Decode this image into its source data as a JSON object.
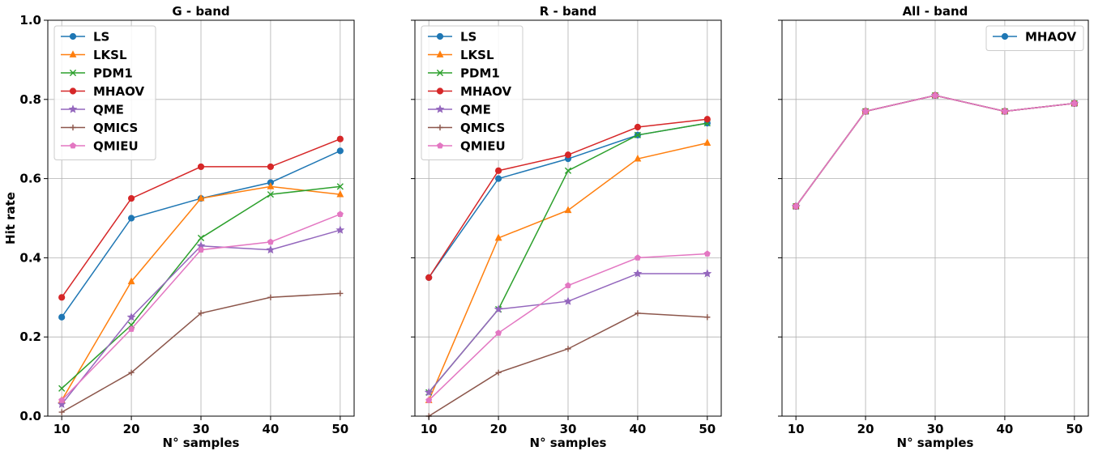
{
  "chart_data": [
    {
      "type": "line",
      "title": "G - band",
      "xlabel": "N° samples",
      "ylabel": "Hit rate",
      "x": [
        10,
        20,
        30,
        40,
        50
      ],
      "xlim": [
        8,
        52
      ],
      "ylim": [
        0,
        1.0
      ],
      "xticks": [
        "10",
        "20",
        "30",
        "40",
        "50"
      ],
      "yticks": [
        "0.0",
        "0.2",
        "0.4",
        "0.6",
        "0.8",
        "1.0"
      ],
      "grid": true,
      "legend_position": "top-left",
      "series": [
        {
          "name": "LS",
          "color": "#1f77b4",
          "marker": "circle",
          "values": [
            0.25,
            0.5,
            0.55,
            0.59,
            0.67
          ]
        },
        {
          "name": "LKSL",
          "color": "#ff7f0e",
          "marker": "triangle",
          "values": [
            0.04,
            0.34,
            0.55,
            0.58,
            0.56
          ]
        },
        {
          "name": "PDM1",
          "color": "#2ca02c",
          "marker": "x",
          "values": [
            0.07,
            0.23,
            0.45,
            0.56,
            0.58
          ]
        },
        {
          "name": "MHAOV",
          "color": "#d62728",
          "marker": "circle",
          "values": [
            0.3,
            0.55,
            0.63,
            0.63,
            0.7
          ]
        },
        {
          "name": "QME",
          "color": "#9467bd",
          "marker": "star",
          "values": [
            0.03,
            0.25,
            0.43,
            0.42,
            0.47
          ]
        },
        {
          "name": "QMICS",
          "color": "#8c564b",
          "marker": "plus",
          "values": [
            0.01,
            0.11,
            0.26,
            0.3,
            0.31
          ]
        },
        {
          "name": "QMIEU",
          "color": "#e377c2",
          "marker": "pentagon",
          "values": [
            0.04,
            0.22,
            0.42,
            0.44,
            0.51
          ]
        }
      ]
    },
    {
      "type": "line",
      "title": "R - band",
      "xlabel": "N° samples",
      "ylabel": "",
      "x": [
        10,
        20,
        30,
        40,
        50
      ],
      "xlim": [
        8,
        52
      ],
      "ylim": [
        0,
        1.0
      ],
      "xticks": [
        "10",
        "20",
        "30",
        "40",
        "50"
      ],
      "yticks": [],
      "grid": true,
      "legend_position": "top-left",
      "series": [
        {
          "name": "LS",
          "color": "#1f77b4",
          "marker": "circle",
          "values": [
            0.35,
            0.6,
            0.65,
            0.71,
            0.74
          ]
        },
        {
          "name": "LKSL",
          "color": "#ff7f0e",
          "marker": "triangle",
          "values": [
            0.04,
            0.45,
            0.52,
            0.65,
            0.69
          ]
        },
        {
          "name": "PDM1",
          "color": "#2ca02c",
          "marker": "x",
          "values": [
            0.06,
            0.27,
            0.62,
            0.71,
            0.74
          ]
        },
        {
          "name": "MHAOV",
          "color": "#d62728",
          "marker": "circle",
          "values": [
            0.35,
            0.62,
            0.66,
            0.73,
            0.75
          ]
        },
        {
          "name": "QME",
          "color": "#9467bd",
          "marker": "star",
          "values": [
            0.06,
            0.27,
            0.29,
            0.36,
            0.36
          ]
        },
        {
          "name": "QMICS",
          "color": "#8c564b",
          "marker": "plus",
          "values": [
            0.0,
            0.11,
            0.17,
            0.26,
            0.25
          ]
        },
        {
          "name": "QMIEU",
          "color": "#e377c2",
          "marker": "pentagon",
          "values": [
            0.04,
            0.21,
            0.33,
            0.4,
            0.41
          ]
        }
      ]
    },
    {
      "type": "line",
      "title": "All - band",
      "xlabel": "N° samples",
      "ylabel": "",
      "x": [
        10,
        20,
        30,
        40,
        50
      ],
      "xlim": [
        8,
        52
      ],
      "ylim": [
        0,
        1.0
      ],
      "xticks": [
        "10",
        "20",
        "30",
        "40",
        "50"
      ],
      "yticks": [],
      "grid": true,
      "legend_position": "top-right",
      "series": [
        {
          "name": "MHAOV",
          "color": "#1f77b4",
          "marker": "circle",
          "values": [
            0.53,
            0.77,
            0.81,
            0.77,
            0.79
          ]
        },
        {
          "color": "#ff7f0e",
          "marker": "triangle",
          "values": [
            0.53,
            0.77,
            0.81,
            0.77,
            0.79
          ]
        },
        {
          "color": "#2ca02c",
          "marker": "x",
          "values": [
            0.53,
            0.77,
            0.81,
            0.77,
            0.79
          ]
        },
        {
          "color": "#d62728",
          "marker": "circle",
          "values": [
            0.53,
            0.77,
            0.81,
            0.77,
            0.79
          ]
        },
        {
          "color": "#9467bd",
          "marker": "star",
          "values": [
            0.53,
            0.77,
            0.81,
            0.77,
            0.79
          ]
        },
        {
          "color": "#8c564b",
          "marker": "plus",
          "values": [
            0.53,
            0.77,
            0.81,
            0.77,
            0.79
          ]
        },
        {
          "color": "#e377c2",
          "marker": "pentagon",
          "values": [
            0.53,
            0.77,
            0.81,
            0.77,
            0.79
          ]
        }
      ]
    }
  ]
}
